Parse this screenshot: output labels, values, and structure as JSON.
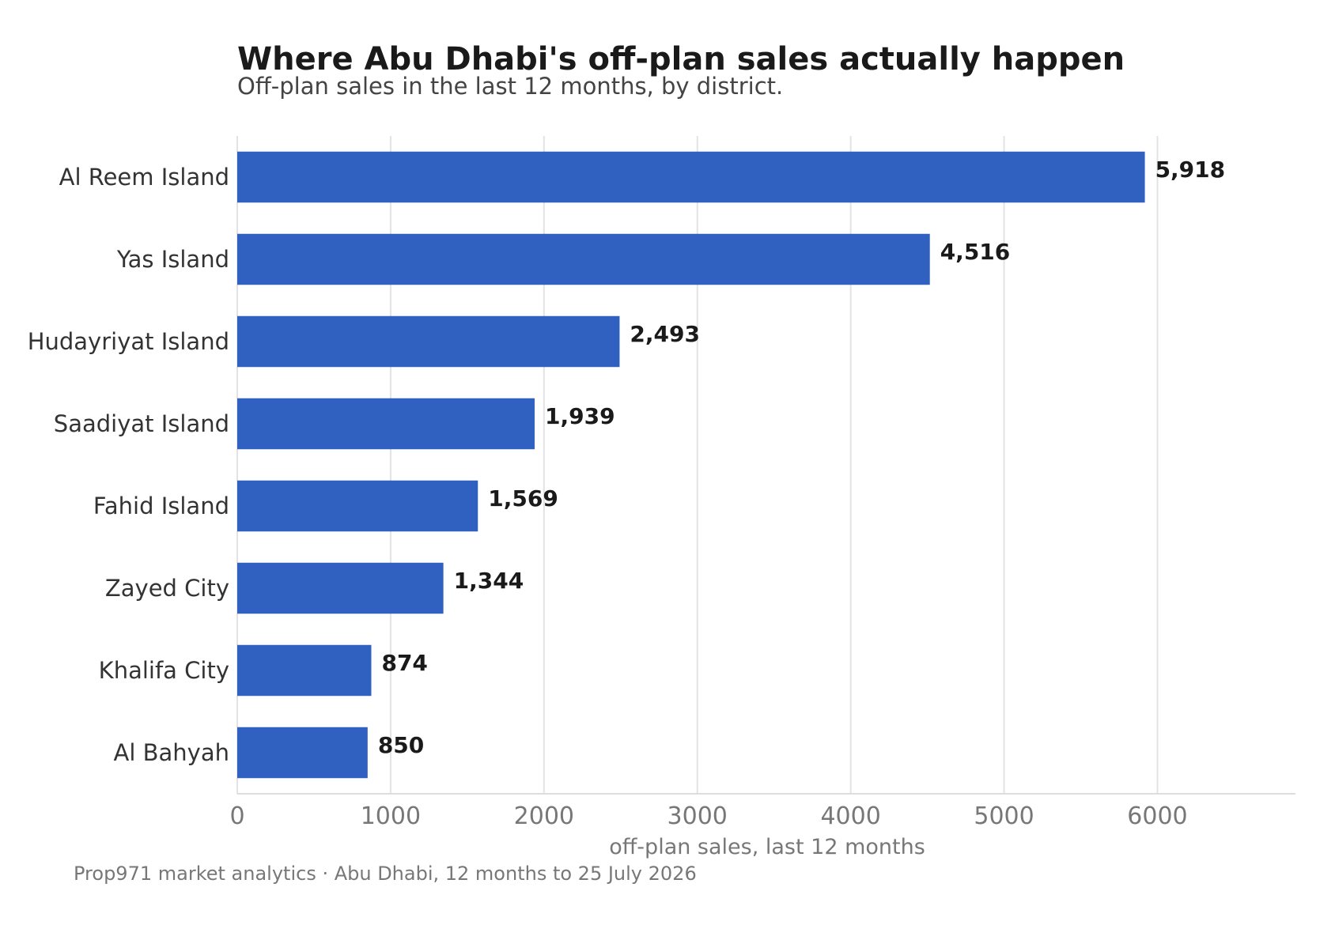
{
  "chart_data": {
    "type": "bar",
    "orientation": "horizontal",
    "title": "Where Abu Dhabi's off-plan sales actually happen",
    "subtitle": "Off-plan sales in the last 12 months, by district.",
    "xlabel": "off-plan sales, last 12 months",
    "ylabel": "",
    "categories": [
      "Al Reem Island",
      "Yas Island",
      "Hudayriyat Island",
      "Saadiyat Island",
      "Fahid Island",
      "Zayed City",
      "Khalifa City",
      "Al Bahyah"
    ],
    "values": [
      5918,
      4516,
      2493,
      1939,
      1569,
      1344,
      874,
      850
    ],
    "value_labels": [
      "5,918",
      "4,516",
      "2,493",
      "1,939",
      "1,569",
      "1,344",
      "874",
      "850"
    ],
    "xlim": [
      0,
      6900
    ],
    "xticks": [
      0,
      1000,
      2000,
      3000,
      4000,
      5000,
      6000
    ],
    "xtick_labels": [
      "0",
      "1000",
      "2000",
      "3000",
      "4000",
      "5000",
      "6000"
    ],
    "grid": "vertical",
    "legend": "none",
    "bar_color": "#3060c0",
    "source": "Prop971 market analytics · Abu Dhabi, 12 months to 25 July 2026"
  }
}
